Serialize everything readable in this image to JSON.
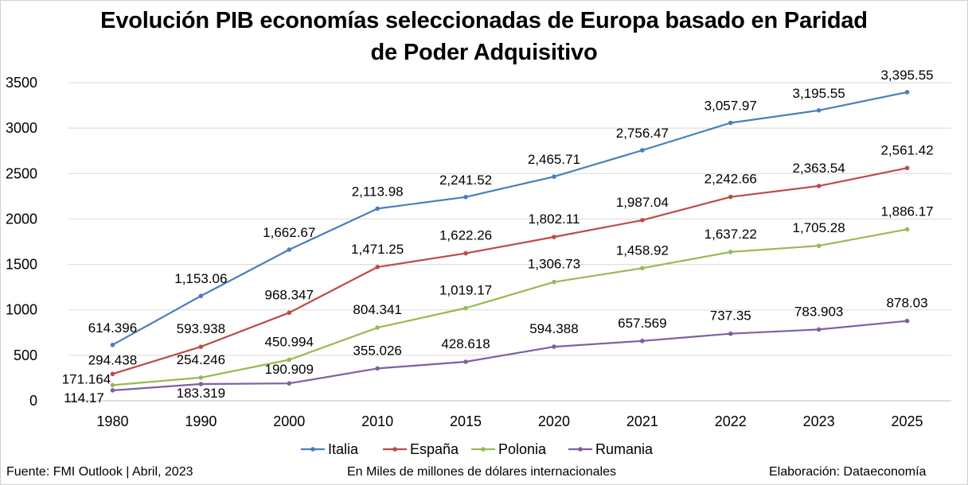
{
  "title_lines": [
    "Evolución PIB economías seleccionadas de Europa basado en Paridad",
    "de Poder Adquisitivo"
  ],
  "footer": {
    "source": "Fuente: FMI Outlook | Abril, 2023",
    "units": "En Miles de millones de dólares internacionales",
    "credit": "Elaboración: Dataeconomía"
  },
  "chart_data": {
    "type": "line",
    "title": "Evolución PIB economías seleccionadas de Europa basado en Paridad de Poder Adquisitivo",
    "categories": [
      "1980",
      "1990",
      "2000",
      "2010",
      "2015",
      "2020",
      "2021",
      "2022",
      "2023",
      "2025"
    ],
    "ylim": [
      0,
      3500
    ],
    "yticks": [
      0,
      500,
      1000,
      1500,
      2000,
      2500,
      3000,
      3500
    ],
    "grid": true,
    "legend_position": "bottom",
    "series": [
      {
        "name": "Italia",
        "color": "#4a7ebb",
        "values": [
          614.396,
          1153.06,
          1662.67,
          2113.98,
          2241.52,
          2465.71,
          2756.47,
          3057.97,
          3195.55,
          3395.55
        ],
        "labels": [
          "614.396",
          "1,153.06",
          "1,662.67",
          "2,113.98",
          "2,241.52",
          "2,465.71",
          "2,756.47",
          "3,057.97",
          "3,195.55",
          "3,395.55"
        ]
      },
      {
        "name": "España",
        "color": "#be4b48",
        "values": [
          294.438,
          593.938,
          968.347,
          1471.25,
          1622.26,
          1802.11,
          1987.04,
          2242.66,
          2363.54,
          2561.42
        ],
        "labels": [
          "294.438",
          "593.938",
          "968.347",
          "1,471.25",
          "1,622.26",
          "1,802.11",
          "1,987.04",
          "2,242.66",
          "2,363.54",
          "2,561.42"
        ]
      },
      {
        "name": "Polonia",
        "color": "#98b954",
        "values": [
          171.164,
          254.246,
          450.994,
          804.341,
          1019.17,
          1306.73,
          1458.92,
          1637.22,
          1705.28,
          1886.17
        ],
        "labels": [
          "171.164",
          "254.246",
          "450.994",
          "804.341",
          "1,019.17",
          "1,306.73",
          "1,458.92",
          "1,637.22",
          "1,705.28",
          "1,886.17"
        ]
      },
      {
        "name": "Rumania",
        "color": "#7d60a0",
        "values": [
          114.17,
          183.319,
          190.909,
          355.026,
          428.618,
          594.388,
          657.569,
          737.35,
          783.903,
          878.03
        ],
        "labels": [
          "114.17",
          "183.319",
          "190.909",
          "355.026",
          "428.618",
          "594.388",
          "657.569",
          "737.35",
          "783.903",
          "878.03"
        ]
      }
    ]
  }
}
